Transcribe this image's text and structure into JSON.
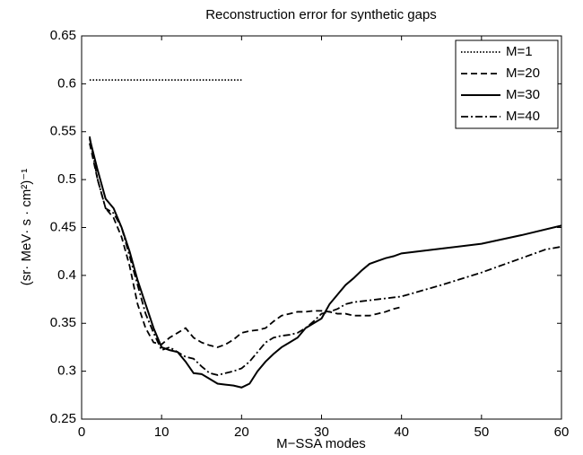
{
  "chart_data": {
    "type": "line",
    "title": "Reconstruction error for synthetic gaps",
    "xlabel": "M−SSA modes",
    "ylabel": "(sr· MeV· s · cm²)⁻¹",
    "xlim": [
      0,
      60
    ],
    "xticks": [
      0,
      10,
      20,
      30,
      40,
      50,
      60
    ],
    "ylim": [
      0.25,
      0.65
    ],
    "yticks": [
      0.25,
      0.3,
      0.35,
      0.4,
      0.45,
      0.5,
      0.55,
      0.6,
      0.65
    ],
    "legend": "northeast",
    "series": [
      {
        "name": "M=1",
        "color": "#000000",
        "linestyle": "dotted",
        "x": [
          1,
          2,
          3,
          4,
          5,
          6,
          7,
          8,
          9,
          10,
          11,
          12,
          13,
          14,
          15,
          16,
          17,
          18,
          19,
          20
        ],
        "values": [
          0.604,
          0.604,
          0.604,
          0.604,
          0.604,
          0.604,
          0.604,
          0.604,
          0.604,
          0.604,
          0.604,
          0.604,
          0.604,
          0.604,
          0.604,
          0.604,
          0.604,
          0.604,
          0.604,
          0.604
        ]
      },
      {
        "name": "M=20",
        "color": "#000000",
        "linestyle": "dashed",
        "x": [
          1,
          2,
          3,
          4,
          5,
          6,
          7,
          8,
          9,
          10,
          11,
          12,
          13,
          14,
          15,
          16,
          17,
          18,
          19,
          20,
          21,
          22,
          23,
          24,
          25,
          26,
          27,
          28,
          29,
          30,
          31,
          32,
          33,
          34,
          35,
          36,
          37,
          38,
          39,
          40
        ],
        "values": [
          0.538,
          0.5,
          0.47,
          0.46,
          0.44,
          0.41,
          0.37,
          0.345,
          0.33,
          0.328,
          0.335,
          0.34,
          0.345,
          0.335,
          0.33,
          0.327,
          0.325,
          0.328,
          0.333,
          0.34,
          0.342,
          0.343,
          0.345,
          0.352,
          0.358,
          0.36,
          0.362,
          0.362,
          0.363,
          0.363,
          0.362,
          0.36,
          0.36,
          0.358,
          0.358,
          0.358,
          0.36,
          0.362,
          0.365,
          0.367
        ]
      },
      {
        "name": "M=30",
        "color": "#000000",
        "linestyle": "solid",
        "x": [
          1,
          2,
          3,
          4,
          5,
          6,
          7,
          8,
          9,
          10,
          11,
          12,
          13,
          14,
          15,
          16,
          17,
          18,
          19,
          20,
          21,
          22,
          23,
          24,
          25,
          26,
          27,
          28,
          29,
          30,
          31,
          32,
          33,
          34,
          35,
          36,
          37,
          38,
          39,
          40,
          45,
          50,
          55,
          60
        ],
        "values": [
          0.543,
          0.51,
          0.48,
          0.47,
          0.45,
          0.425,
          0.395,
          0.37,
          0.345,
          0.325,
          0.322,
          0.32,
          0.31,
          0.298,
          0.297,
          0.292,
          0.287,
          0.286,
          0.285,
          0.283,
          0.287,
          0.3,
          0.31,
          0.318,
          0.325,
          0.33,
          0.335,
          0.345,
          0.35,
          0.355,
          0.37,
          0.38,
          0.39,
          0.397,
          0.405,
          0.412,
          0.415,
          0.418,
          0.42,
          0.423,
          0.428,
          0.433,
          0.442,
          0.452
        ]
      },
      {
        "name": "M=40",
        "color": "#000000",
        "linestyle": "dashdot",
        "x": [
          1,
          2,
          3,
          4,
          5,
          6,
          7,
          8,
          9,
          10,
          11,
          12,
          13,
          14,
          15,
          16,
          17,
          18,
          19,
          20,
          21,
          22,
          23,
          24,
          25,
          26,
          27,
          28,
          29,
          30,
          31,
          32,
          33,
          34,
          35,
          36,
          37,
          38,
          40,
          45,
          50,
          55,
          58,
          60
        ],
        "values": [
          0.545,
          0.5,
          0.47,
          0.465,
          0.45,
          0.42,
          0.39,
          0.36,
          0.34,
          0.322,
          0.325,
          0.32,
          0.315,
          0.313,
          0.305,
          0.298,
          0.296,
          0.298,
          0.3,
          0.303,
          0.31,
          0.32,
          0.33,
          0.335,
          0.337,
          0.338,
          0.34,
          0.345,
          0.352,
          0.36,
          0.362,
          0.365,
          0.37,
          0.372,
          0.373,
          0.374,
          0.375,
          0.376,
          0.378,
          0.39,
          0.403,
          0.418,
          0.427,
          0.43
        ]
      }
    ]
  }
}
